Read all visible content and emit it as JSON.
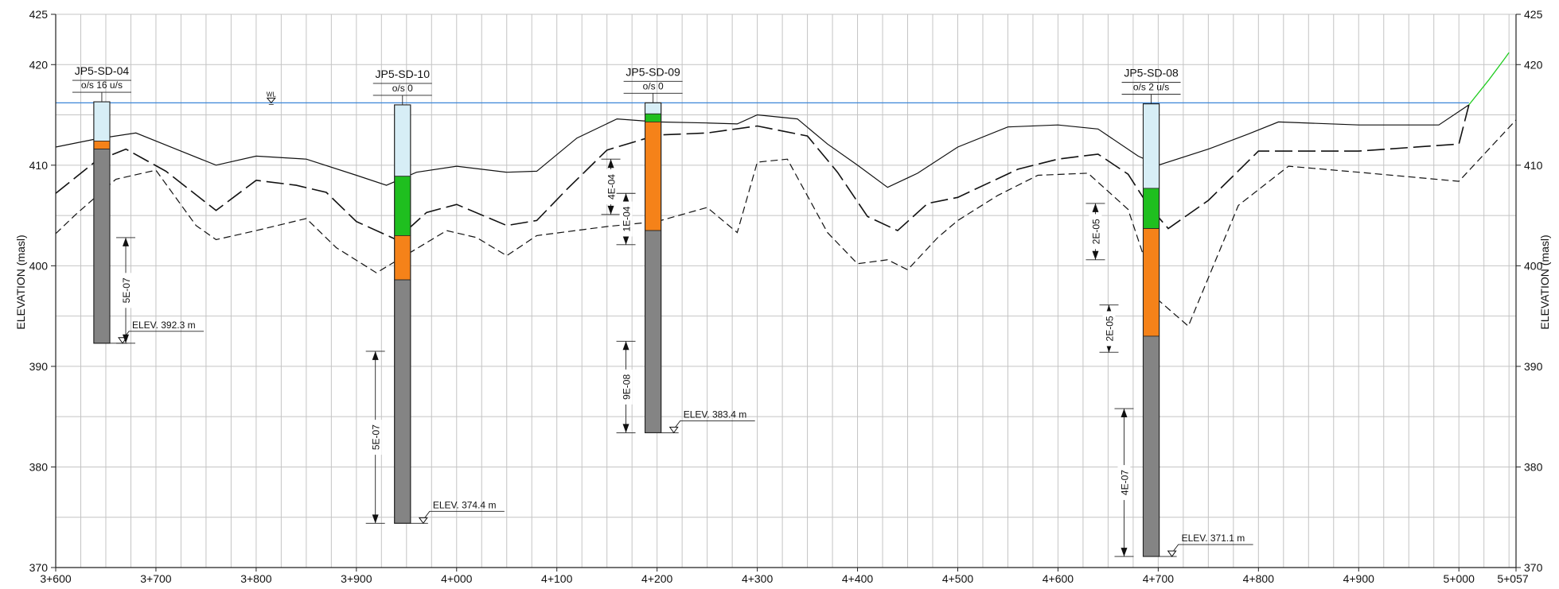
{
  "chart_data": {
    "type": "cross-section",
    "xlabel": "",
    "ylabel": "ELEVATION (masl)",
    "xlim": [
      3600,
      5057
    ],
    "ylim": [
      370,
      425
    ],
    "x_ticks": [
      {
        "v": 3600,
        "label": "3+600"
      },
      {
        "v": 3700,
        "label": "3+700"
      },
      {
        "v": 3800,
        "label": "3+800"
      },
      {
        "v": 3900,
        "label": "3+900"
      },
      {
        "v": 4000,
        "label": "4+000"
      },
      {
        "v": 4100,
        "label": "4+100"
      },
      {
        "v": 4200,
        "label": "4+200"
      },
      {
        "v": 4300,
        "label": "4+300"
      },
      {
        "v": 4400,
        "label": "4+400"
      },
      {
        "v": 4500,
        "label": "4+500"
      },
      {
        "v": 4600,
        "label": "4+600"
      },
      {
        "v": 4700,
        "label": "4+700"
      },
      {
        "v": 4800,
        "label": "4+800"
      },
      {
        "v": 4900,
        "label": "4+900"
      },
      {
        "v": 5000,
        "label": "5+000"
      },
      {
        "v": 5057,
        "label": "5+057"
      }
    ],
    "y_ticks": [
      {
        "v": 370,
        "label": "370"
      },
      {
        "v": 380,
        "label": "380"
      },
      {
        "v": 390,
        "label": "390"
      },
      {
        "v": 400,
        "label": "400"
      },
      {
        "v": 410,
        "label": "410"
      },
      {
        "v": 420,
        "label": "420"
      },
      {
        "v": 425,
        "label": "425"
      }
    ],
    "water_level": {
      "elev": 416.2,
      "label": "WL",
      "marker_x": 3815
    },
    "ground_surface": [
      [
        3600,
        411.8
      ],
      [
        3640,
        412.6
      ],
      [
        3680,
        413.2
      ],
      [
        3720,
        411.6
      ],
      [
        3760,
        410.0
      ],
      [
        3800,
        410.9
      ],
      [
        3850,
        410.6
      ],
      [
        3900,
        409.0
      ],
      [
        3930,
        408.0
      ],
      [
        3960,
        409.3
      ],
      [
        4000,
        409.9
      ],
      [
        4050,
        409.3
      ],
      [
        4080,
        409.4
      ],
      [
        4120,
        412.7
      ],
      [
        4160,
        414.6
      ],
      [
        4200,
        414.3
      ],
      [
        4250,
        414.2
      ],
      [
        4280,
        414.1
      ],
      [
        4300,
        415.0
      ],
      [
        4340,
        414.6
      ],
      [
        4370,
        412.1
      ],
      [
        4400,
        410.0
      ],
      [
        4430,
        407.8
      ],
      [
        4460,
        409.2
      ],
      [
        4500,
        411.8
      ],
      [
        4550,
        413.8
      ],
      [
        4600,
        414.0
      ],
      [
        4640,
        413.6
      ],
      [
        4680,
        410.9
      ],
      [
        4700,
        410.0
      ],
      [
        4750,
        411.6
      ],
      [
        4790,
        413.1
      ],
      [
        4820,
        414.3
      ],
      [
        4900,
        414.0
      ],
      [
        4980,
        414.0
      ],
      [
        5010,
        416.0
      ]
    ],
    "top_bedrock_dashed": [
      [
        3600,
        407.2
      ],
      [
        3640,
        410.4
      ],
      [
        3670,
        411.6
      ],
      [
        3710,
        409.4
      ],
      [
        3760,
        405.5
      ],
      [
        3800,
        408.5
      ],
      [
        3840,
        408.0
      ],
      [
        3870,
        407.3
      ],
      [
        3900,
        404.4
      ],
      [
        3940,
        402.6
      ],
      [
        3970,
        405.3
      ],
      [
        4000,
        406.1
      ],
      [
        4050,
        404.0
      ],
      [
        4080,
        404.5
      ],
      [
        4110,
        407.6
      ],
      [
        4150,
        411.5
      ],
      [
        4200,
        413.0
      ],
      [
        4250,
        413.2
      ],
      [
        4300,
        413.9
      ],
      [
        4350,
        412.9
      ],
      [
        4380,
        409.3
      ],
      [
        4410,
        404.9
      ],
      [
        4440,
        403.5
      ],
      [
        4470,
        406.2
      ],
      [
        4500,
        406.8
      ],
      [
        4560,
        409.6
      ],
      [
        4600,
        410.6
      ],
      [
        4640,
        411.1
      ],
      [
        4670,
        409.1
      ],
      [
        4690,
        406.0
      ],
      [
        4710,
        403.7
      ],
      [
        4750,
        406.5
      ],
      [
        4800,
        411.4
      ],
      [
        4900,
        411.4
      ],
      [
        5000,
        412.1
      ],
      [
        5010,
        416.0
      ]
    ],
    "lower_boundary_dashed": [
      [
        3600,
        403.2
      ],
      [
        3620,
        405.1
      ],
      [
        3660,
        408.6
      ],
      [
        3700,
        409.5
      ],
      [
        3740,
        404.0
      ],
      [
        3760,
        402.6
      ],
      [
        3800,
        403.5
      ],
      [
        3850,
        404.7
      ],
      [
        3880,
        401.8
      ],
      [
        3920,
        399.3
      ],
      [
        3960,
        401.7
      ],
      [
        3990,
        403.5
      ],
      [
        4020,
        402.8
      ],
      [
        4050,
        401.0
      ],
      [
        4080,
        403.0
      ],
      [
        4150,
        403.9
      ],
      [
        4200,
        404.4
      ],
      [
        4250,
        405.8
      ],
      [
        4280,
        403.3
      ],
      [
        4300,
        410.3
      ],
      [
        4330,
        410.6
      ],
      [
        4370,
        403.3
      ],
      [
        4400,
        400.2
      ],
      [
        4430,
        400.6
      ],
      [
        4450,
        399.6
      ],
      [
        4480,
        402.8
      ],
      [
        4500,
        404.5
      ],
      [
        4540,
        407.0
      ],
      [
        4580,
        409.0
      ],
      [
        4630,
        409.2
      ],
      [
        4670,
        405.6
      ],
      [
        4700,
        396.6
      ],
      [
        4730,
        394.0
      ],
      [
        4780,
        406.0
      ],
      [
        4830,
        409.9
      ],
      [
        4900,
        409.3
      ],
      [
        5000,
        408.4
      ],
      [
        5057,
        414.5
      ]
    ],
    "existing_slope_green": [
      [
        5010,
        416.0
      ],
      [
        5030,
        418.5
      ],
      [
        5045,
        420.5
      ],
      [
        5050,
        421.2
      ]
    ],
    "layer_colors": {
      "fill": "#d7eef6",
      "sand_gravel": "#1fbf1f",
      "silt_clay": "#f58219",
      "rock": "#848484"
    },
    "boreholes": [
      {
        "id": "JP5-SD-04",
        "offset": "o/s 16 u/s",
        "x": 3646,
        "width_m": 16,
        "top": 416.3,
        "layers": [
          {
            "material": "fill",
            "top": 416.3,
            "bottom": 412.4
          },
          {
            "material": "silt_clay",
            "top": 412.4,
            "bottom": 411.6
          },
          {
            "material": "rock",
            "top": 411.6,
            "bottom": 392.3
          }
        ],
        "elev_label": "ELEV. 392.3 m",
        "k_tests": [
          {
            "label": "5E-07",
            "top": 402.8,
            "bottom": 392.3,
            "x_offset": 20
          }
        ]
      },
      {
        "id": "JP5-SD-10",
        "offset": "o/s 0",
        "x": 3946,
        "width_m": 16,
        "top": 416.0,
        "layers": [
          {
            "material": "fill",
            "top": 416.0,
            "bottom": 408.9
          },
          {
            "material": "sand_gravel",
            "top": 408.9,
            "bottom": 403.0
          },
          {
            "material": "silt_clay",
            "top": 403.0,
            "bottom": 398.6
          },
          {
            "material": "rock",
            "top": 398.6,
            "bottom": 374.4
          }
        ],
        "elev_label": "ELEV. 374.4 m",
        "k_tests": [
          {
            "label": "5E-07",
            "top": 391.5,
            "bottom": 374.4,
            "x_offset": -24
          }
        ]
      },
      {
        "id": "JP5-SD-09",
        "offset": "o/s 0",
        "x": 4196,
        "width_m": 16,
        "top": 416.2,
        "layers": [
          {
            "material": "fill",
            "top": 416.2,
            "bottom": 415.1
          },
          {
            "material": "sand_gravel",
            "top": 415.1,
            "bottom": 414.3
          },
          {
            "material": "silt_clay",
            "top": 414.3,
            "bottom": 403.5
          },
          {
            "material": "rock",
            "top": 403.5,
            "bottom": 383.4
          }
        ],
        "elev_label": "ELEV. 383.4 m",
        "k_tests": [
          {
            "label": "4E-04",
            "top": 410.6,
            "bottom": 405.1,
            "x_offset": -43
          },
          {
            "label": "1E-04",
            "top": 407.2,
            "bottom": 402.1,
            "x_offset": -24
          },
          {
            "label": "9E-08",
            "top": 392.5,
            "bottom": 383.4,
            "x_offset": -24
          }
        ]
      },
      {
        "id": "JP5-SD-08",
        "offset": "o/s 2 u/s",
        "x": 4693,
        "width_m": 16,
        "top": 416.1,
        "layers": [
          {
            "material": "fill",
            "top": 416.1,
            "bottom": 407.7
          },
          {
            "material": "sand_gravel",
            "top": 407.7,
            "bottom": 403.7
          },
          {
            "material": "silt_clay",
            "top": 403.7,
            "bottom": 393.0
          },
          {
            "material": "rock",
            "top": 393.0,
            "bottom": 371.1
          }
        ],
        "elev_label": "ELEV. 371.1 m",
        "k_tests": [
          {
            "label": "2E-05",
            "top": 406.2,
            "bottom": 400.6,
            "x_offset": -60
          },
          {
            "label": "2E-05",
            "top": 396.1,
            "bottom": 391.4,
            "x_offset": -43
          },
          {
            "label": "4E-07",
            "top": 385.8,
            "bottom": 371.1,
            "x_offset": -24
          }
        ]
      }
    ]
  }
}
